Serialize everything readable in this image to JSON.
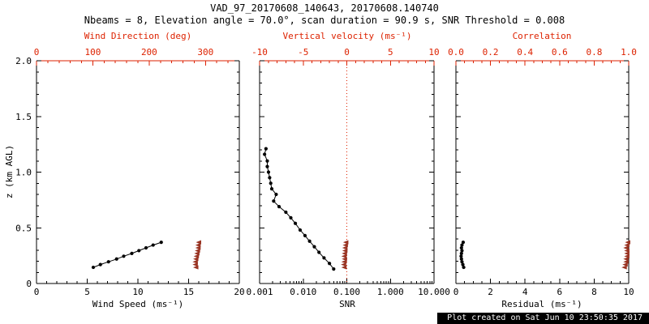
{
  "header": {
    "title": "VAD_97_20170608_140643, 20170608.140740",
    "subtitle": "Nbeams = 8, Elevation angle = 70.0°, scan duration = 90.9 s, SNR Threshold = 0.008"
  },
  "footer": {
    "created": "Plot created on Sat Jun 10 23:50:35 2017"
  },
  "colors": {
    "axis_red": "#dd2200",
    "marker_red": "#993322",
    "black": "#000000",
    "background": "#ffffff"
  },
  "chart_data": [
    {
      "name": "wind",
      "type": "line",
      "xlabel": "Wind Speed (ms⁻¹)",
      "xlabel_top": "Wind Direction (deg)",
      "ylabel": "z (km AGL)",
      "xscale": "linear",
      "xlim": [
        0,
        20
      ],
      "xticks": [
        0,
        5,
        10,
        15,
        20
      ],
      "xtick_labels": [
        "0",
        "5",
        "10",
        "15",
        "20"
      ],
      "xminor": 1,
      "xlim_top": [
        0,
        360
      ],
      "xticks_top": [
        0,
        100,
        200,
        300
      ],
      "xtick_labels_top": [
        "0",
        "100",
        "200",
        "300"
      ],
      "xminor_top": 20,
      "ylim": [
        0,
        2
      ],
      "yticks": [
        0,
        0.5,
        1,
        1.5,
        2
      ],
      "ytick_labels": [
        "0",
        "0.5",
        "1.0",
        "1.5",
        "2.0"
      ],
      "yminor": 0.1,
      "show_ytick_labels": true,
      "series": [
        {
          "name": "wind-speed",
          "axis": "bottom",
          "color": "#000000",
          "marker": "dot",
          "line": true,
          "z": [
            0.145,
            0.17,
            0.195,
            0.22,
            0.245,
            0.27,
            0.295,
            0.32,
            0.345,
            0.37
          ],
          "values": [
            5.6,
            6.3,
            7.1,
            7.9,
            8.6,
            9.4,
            10.1,
            10.8,
            11.5,
            12.3
          ]
        },
        {
          "name": "wind-direction",
          "axis": "top",
          "color": "#993322",
          "marker": "arrow",
          "line": false,
          "z": [
            0.145,
            0.17,
            0.195,
            0.22,
            0.245,
            0.27,
            0.295,
            0.32,
            0.345,
            0.37
          ],
          "values": [
            283,
            282,
            282,
            283,
            284,
            285,
            286,
            287,
            287,
            288
          ]
        }
      ]
    },
    {
      "name": "snr",
      "type": "line",
      "xlabel": "SNR",
      "xlabel_top": "Vertical velocity (ms⁻¹)",
      "xscale": "log",
      "xlim": [
        0.001,
        10
      ],
      "xticks": [
        0.001,
        0.01,
        0.1,
        1,
        10
      ],
      "xtick_labels": [
        "0.001",
        "0.010",
        "0.100",
        "1.000",
        "10.000"
      ],
      "xlim_top": [
        -10,
        10
      ],
      "xticks_top": [
        -10,
        -5,
        0,
        5,
        10
      ],
      "xtick_labels_top": [
        "-10",
        "-5",
        "0",
        "5",
        "10"
      ],
      "xminor_top": 1,
      "ylim": [
        0,
        2
      ],
      "yticks": [
        0,
        0.5,
        1,
        1.5,
        2
      ],
      "yminor": 0.1,
      "show_ytick_labels": false,
      "vline_top": 0,
      "series": [
        {
          "name": "snr-profile",
          "axis": "bottom",
          "color": "#000000",
          "marker": "dot",
          "line": true,
          "z": [
            0.13,
            0.18,
            0.23,
            0.28,
            0.33,
            0.38,
            0.43,
            0.48,
            0.54,
            0.59,
            0.64,
            0.69,
            0.74,
            0.8,
            0.85,
            0.9,
            0.95,
            1.0,
            1.05,
            1.1,
            1.16,
            1.21
          ],
          "values": [
            0.05,
            0.04,
            0.03,
            0.023,
            0.018,
            0.014,
            0.011,
            0.0085,
            0.0066,
            0.0052,
            0.004,
            0.0028,
            0.0021,
            0.0024,
            0.0019,
            0.0018,
            0.0017,
            0.0016,
            0.0015,
            0.0015,
            0.0013,
            0.0014
          ]
        },
        {
          "name": "vertical-velocity",
          "axis": "top",
          "color": "#993322",
          "marker": "arrow",
          "line": false,
          "z": [
            0.145,
            0.17,
            0.195,
            0.22,
            0.245,
            0.27,
            0.295,
            0.32,
            0.345,
            0.37
          ],
          "values": [
            -0.3,
            -0.35,
            -0.3,
            -0.25,
            -0.3,
            -0.25,
            -0.2,
            -0.2,
            -0.15,
            -0.1
          ]
        }
      ]
    },
    {
      "name": "residual",
      "type": "line",
      "xlabel": "Residual (ms⁻¹)",
      "xlabel_top": "Correlation",
      "xscale": "linear",
      "xlim": [
        0,
        10
      ],
      "xticks": [
        0,
        2,
        4,
        6,
        8,
        10
      ],
      "xtick_labels": [
        "0",
        "2",
        "4",
        "6",
        "8",
        "10"
      ],
      "xminor": 0.5,
      "xlim_top": [
        0,
        1
      ],
      "xticks_top": [
        0,
        0.2,
        0.4,
        0.6,
        0.8,
        1.0
      ],
      "xtick_labels_top": [
        "0.0",
        "0.2",
        "0.4",
        "0.6",
        "0.8",
        "1.0"
      ],
      "xminor_top": 0.05,
      "ylim": [
        0,
        2
      ],
      "yticks": [
        0,
        0.5,
        1,
        1.5,
        2
      ],
      "yminor": 0.1,
      "show_ytick_labels": false,
      "series": [
        {
          "name": "residual",
          "axis": "bottom",
          "color": "#000000",
          "marker": "dot",
          "line": true,
          "z": [
            0.145,
            0.17,
            0.195,
            0.22,
            0.245,
            0.27,
            0.295,
            0.32,
            0.345,
            0.37
          ],
          "values": [
            0.45,
            0.4,
            0.35,
            0.32,
            0.3,
            0.32,
            0.35,
            0.32,
            0.35,
            0.42
          ]
        },
        {
          "name": "correlation",
          "axis": "top",
          "color": "#993322",
          "marker": "arrow",
          "line": false,
          "z": [
            0.145,
            0.17,
            0.195,
            0.22,
            0.245,
            0.27,
            0.295,
            0.32,
            0.345,
            0.37
          ],
          "values": [
            0.975,
            0.98,
            0.985,
            0.985,
            0.99,
            0.99,
            0.99,
            0.985,
            0.99,
            0.995
          ]
        }
      ]
    }
  ]
}
